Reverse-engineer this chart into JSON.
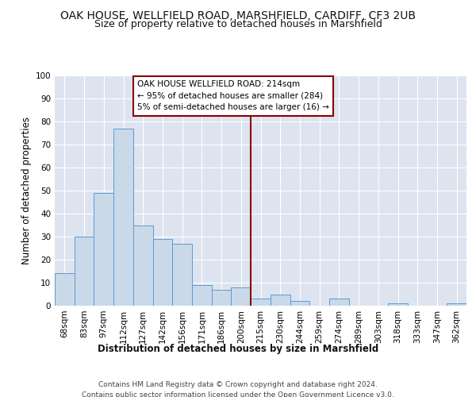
{
  "title1": "OAK HOUSE, WELLFIELD ROAD, MARSHFIELD, CARDIFF, CF3 2UB",
  "title2": "Size of property relative to detached houses in Marshfield",
  "xlabel": "Distribution of detached houses by size in Marshfield",
  "ylabel": "Number of detached properties",
  "footer1": "Contains HM Land Registry data © Crown copyright and database right 2024.",
  "footer2": "Contains public sector information licensed under the Open Government Licence v3.0.",
  "bin_labels": [
    "68sqm",
    "83sqm",
    "97sqm",
    "112sqm",
    "127sqm",
    "142sqm",
    "156sqm",
    "171sqm",
    "186sqm",
    "200sqm",
    "215sqm",
    "230sqm",
    "244sqm",
    "259sqm",
    "274sqm",
    "289sqm",
    "303sqm",
    "318sqm",
    "333sqm",
    "347sqm",
    "362sqm"
  ],
  "bar_heights": [
    14,
    30,
    49,
    77,
    35,
    29,
    27,
    9,
    7,
    8,
    3,
    5,
    2,
    0,
    3,
    0,
    0,
    1,
    0,
    0,
    1
  ],
  "bar_color": "#c9d9e8",
  "bar_edge_color": "#5b9bd5",
  "vline_color": "#8b0000",
  "annotation_text": "OAK HOUSE WELLFIELD ROAD: 214sqm\n← 95% of detached houses are smaller (284)\n5% of semi-detached houses are larger (16) →",
  "annotation_box_color": "#ffffff",
  "annotation_box_edge": "#8b0000",
  "ylim": [
    0,
    100
  ],
  "fig_bg_color": "#ffffff",
  "plot_bg_color": "#dde4f0",
  "grid_color": "#ffffff",
  "title_fontsize": 10,
  "subtitle_fontsize": 9,
  "tick_fontsize": 7.5,
  "ylabel_fontsize": 8.5,
  "xlabel_fontsize": 8.5,
  "annotation_fontsize": 7.5,
  "footer_fontsize": 6.5
}
